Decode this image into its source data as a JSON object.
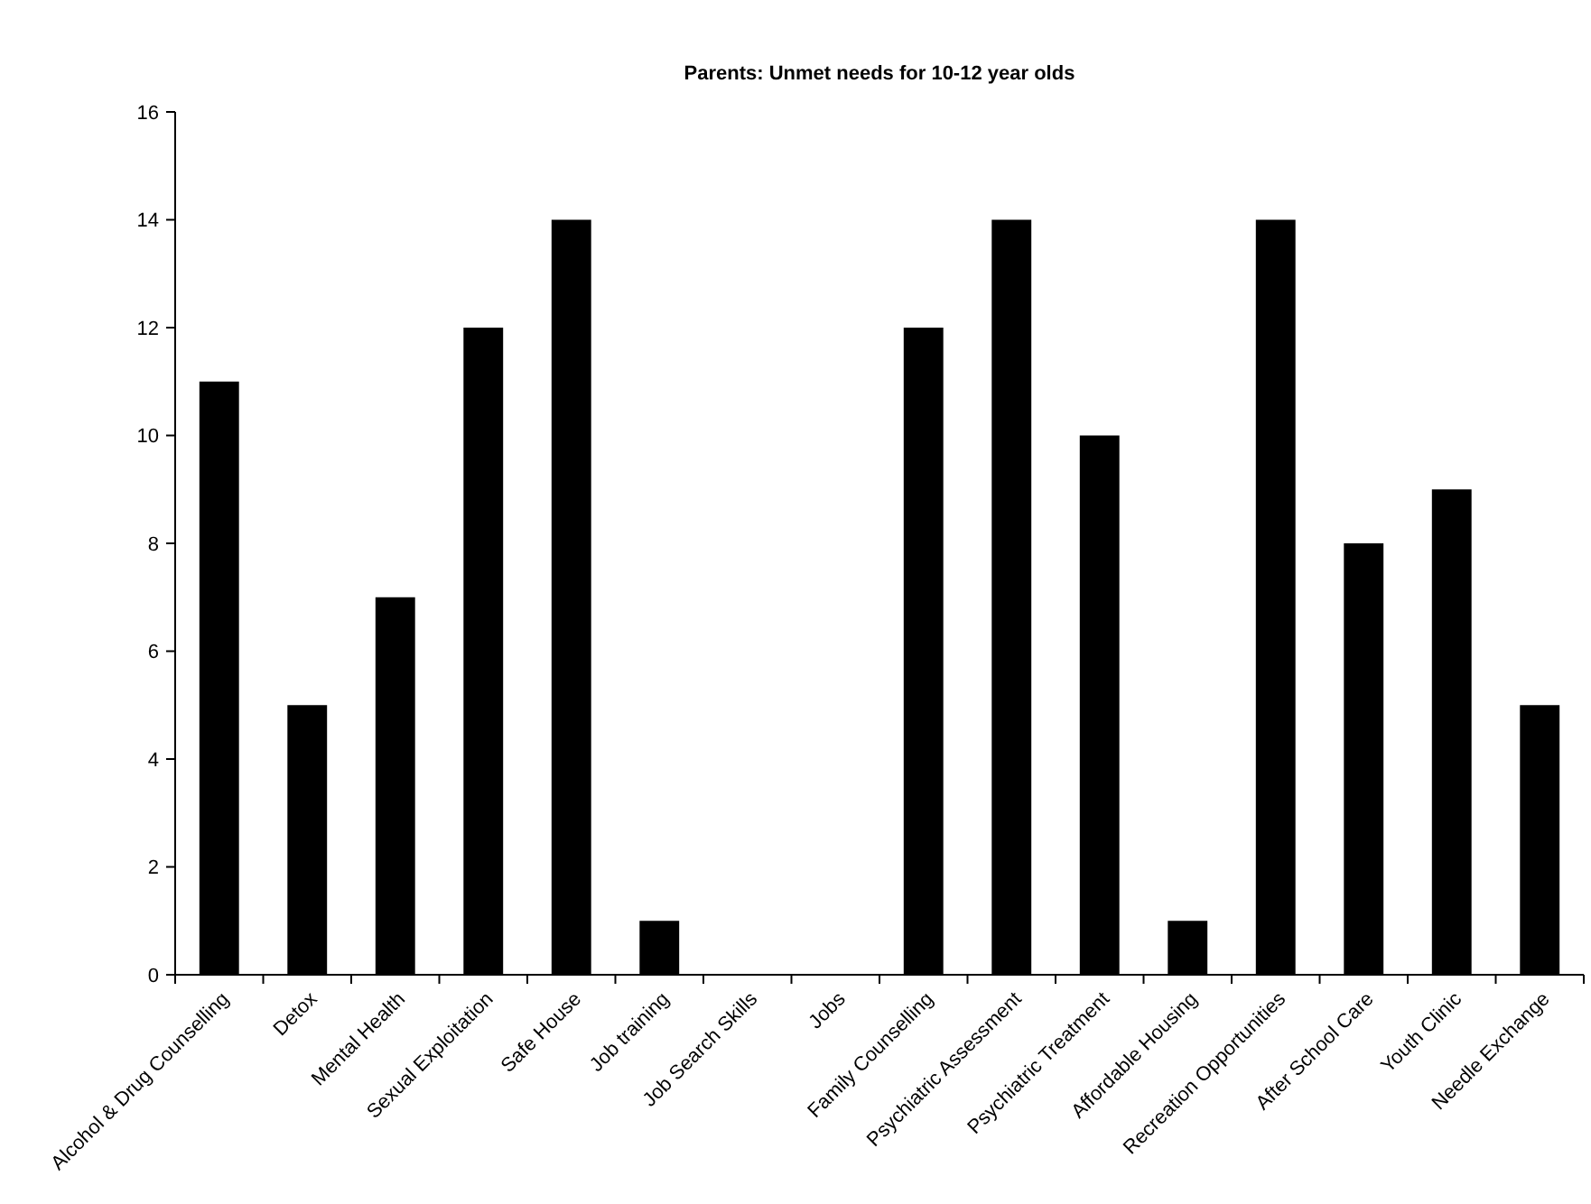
{
  "chart_data": {
    "type": "bar",
    "title": "Parents: Unmet needs for 10-12 year olds",
    "categories": [
      "Alcohol & Drug Counselling",
      "Detox",
      "Mental Health",
      "Sexual Exploitation",
      "Safe House",
      "Job training",
      "Job Search Skills",
      "Jobs",
      "Family Counselling",
      "Psychiatric Assessment",
      "Psychiatric Treatment",
      "Affordable Housing",
      "Recreation Opportunities",
      "After School Care",
      "Youth Clinic",
      "Needle Exchange"
    ],
    "values": [
      11,
      5,
      7,
      12,
      14,
      1,
      0,
      0,
      12,
      14,
      10,
      1,
      14,
      8,
      9,
      5
    ],
    "color": "#000000",
    "ylim": [
      0,
      16
    ],
    "yticks": [
      0,
      2,
      4,
      6,
      8,
      10,
      12,
      14,
      16
    ],
    "grid": false
  }
}
